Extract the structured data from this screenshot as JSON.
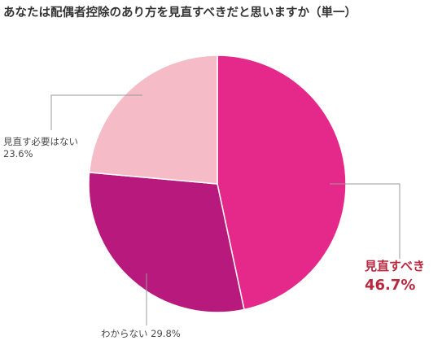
{
  "chart_data": {
    "type": "pie",
    "title": "あなたは配偶者控除のあり方を見直すべきだと思いますか（単一）",
    "slices": [
      {
        "label": "見直すべき",
        "value": 46.7,
        "value_label": "46.7%",
        "color": "#e5298a",
        "emphasis": true
      },
      {
        "label": "わからない",
        "value": 29.8,
        "value_label": "29.8%",
        "color": "#b8197c",
        "emphasis": false
      },
      {
        "label": "見直す必要はない",
        "value": 23.6,
        "value_label": "23.6%",
        "color": "#f5bcc8",
        "emphasis": false
      }
    ],
    "start_angle": "12 o'clock",
    "direction": "clockwise"
  }
}
